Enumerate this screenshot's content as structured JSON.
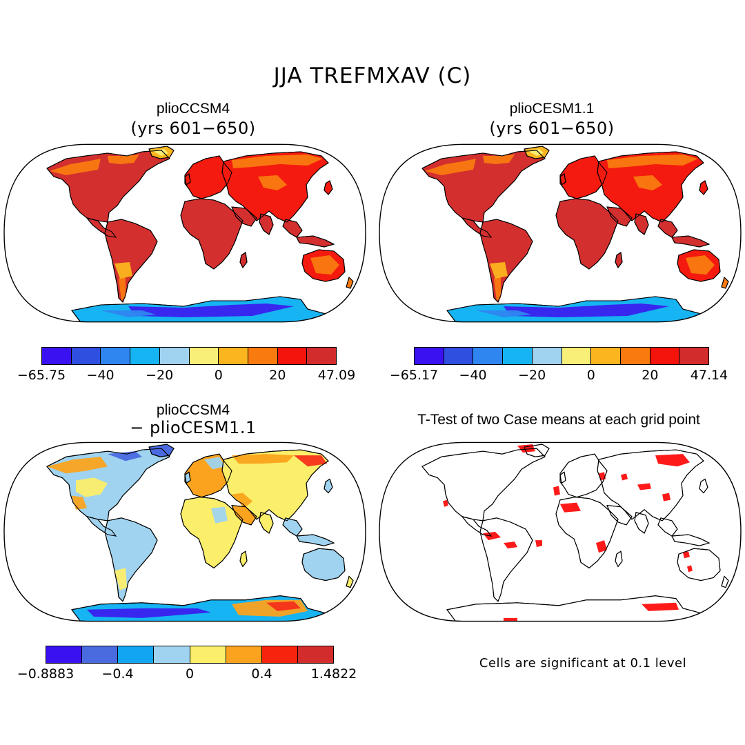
{
  "figure": {
    "title": "JJA TREFMXAV (C)"
  },
  "panels": {
    "top_left": {
      "title": "plioCCSM4",
      "subtitle": "(yrs 601−650)",
      "colorbar": {
        "colors": [
          "#3a12f2",
          "#2e4fe0",
          "#2f86f0",
          "#16b4f2",
          "#9fd3ef",
          "#f8ef78",
          "#fbb51f",
          "#f97a0f",
          "#f5140c",
          "#d22c2c"
        ],
        "ticks": [
          "−65.75",
          "−40",
          "−20",
          "0",
          "20",
          "47.09"
        ]
      }
    },
    "top_right": {
      "title": "plioCESM1.1",
      "subtitle": "(yrs 601−650)",
      "colorbar": {
        "colors": [
          "#3a12f2",
          "#2e4fe0",
          "#2f86f0",
          "#16b4f2",
          "#9fd3ef",
          "#f8ef78",
          "#fbb51f",
          "#f97a0f",
          "#f5140c",
          "#d22c2c"
        ],
        "ticks": [
          "−65.17",
          "−40",
          "−20",
          "0",
          "20",
          "47.14"
        ]
      }
    },
    "bottom_left": {
      "title": "plioCCSM4",
      "subtitle": "− plioCESM1.1",
      "colorbar": {
        "colors": [
          "#3a12f2",
          "#4a6ae0",
          "#12a6f2",
          "#9fd3ef",
          "#fbee6a",
          "#fba31e",
          "#f8230c",
          "#d22c2c"
        ],
        "ticks": [
          "−0.8883",
          "−0.4",
          "0",
          "0.4",
          "1.4822"
        ]
      }
    },
    "bottom_right": {
      "title": "T-Test of two Case means at each grid point",
      "note": "Cells are significant at 0.1 level",
      "sig_color": "#ff1a1a"
    }
  },
  "palette": {
    "land_hot": "#d32f2f",
    "land_red": "#f51a0f",
    "land_orange": "#f97a10",
    "land_amber": "#fbb51f",
    "land_yellow": "#f8ef78",
    "ice_blue": "#16b4f2",
    "ice_deep": "#3a20ee",
    "ice_mid": "#2f86f0",
    "diff_light_blue": "#9fd3ef",
    "diff_yellow": "#fbee6a",
    "diff_orange": "#fba31e",
    "diff_blue": "#4a6ae0"
  }
}
